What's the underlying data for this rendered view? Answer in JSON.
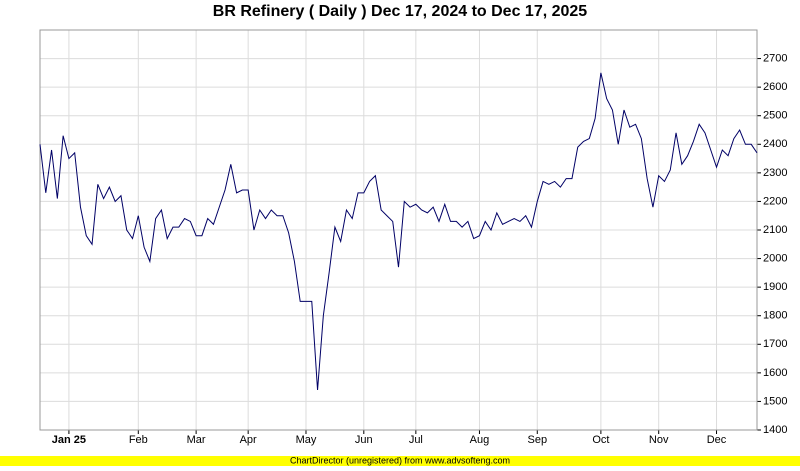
{
  "chart_data": {
    "type": "line",
    "title": "BR Refinery ( Daily ) Dec 17, 2024 to Dec 17, 2025",
    "categories": [
      null,
      null,
      null,
      null,
      null,
      "Jan 25",
      null,
      null,
      null,
      null,
      null,
      null,
      null,
      null,
      null,
      null,
      null,
      "Feb",
      null,
      null,
      null,
      null,
      null,
      null,
      null,
      null,
      null,
      "Mar",
      null,
      null,
      null,
      null,
      null,
      null,
      null,
      null,
      "Apr",
      null,
      null,
      null,
      null,
      null,
      null,
      null,
      null,
      null,
      "May",
      null,
      null,
      null,
      null,
      null,
      null,
      null,
      null,
      null,
      "Jun",
      null,
      null,
      null,
      null,
      null,
      null,
      null,
      null,
      "Jul",
      null,
      null,
      null,
      null,
      null,
      null,
      null,
      null,
      null,
      null,
      "Aug",
      null,
      null,
      null,
      null,
      null,
      null,
      null,
      null,
      null,
      "Sep",
      null,
      null,
      null,
      null,
      null,
      null,
      null,
      null,
      null,
      null,
      "Oct",
      null,
      null,
      null,
      null,
      null,
      null,
      null,
      null,
      null,
      "Nov",
      null,
      null,
      null,
      null,
      null,
      null,
      null,
      null,
      null,
      "Dec",
      null,
      null,
      null,
      null,
      null,
      null,
      null
    ],
    "values": [
      2400,
      2230,
      2380,
      2210,
      2430,
      2350,
      2370,
      2180,
      2080,
      2050,
      2260,
      2210,
      2250,
      2200,
      2220,
      2100,
      2070,
      2150,
      2040,
      1990,
      2140,
      2170,
      2070,
      2110,
      2110,
      2140,
      2130,
      2080,
      2080,
      2140,
      2120,
      2180,
      2240,
      2330,
      2230,
      2240,
      2240,
      2100,
      2170,
      2140,
      2170,
      2150,
      2150,
      2090,
      1990,
      1850,
      1850,
      1850,
      1540,
      1800,
      1950,
      2110,
      2060,
      2170,
      2140,
      2230,
      2230,
      2270,
      2290,
      2170,
      2150,
      2130,
      1970,
      2200,
      2180,
      2190,
      2170,
      2160,
      2180,
      2130,
      2190,
      2130,
      2130,
      2110,
      2130,
      2070,
      2080,
      2130,
      2100,
      2160,
      2120,
      2130,
      2140,
      2130,
      2150,
      2110,
      2200,
      2270,
      2260,
      2270,
      2250,
      2280,
      2280,
      2390,
      2410,
      2420,
      2490,
      2650,
      2560,
      2520,
      2400,
      2520,
      2460,
      2470,
      2420,
      2280,
      2180,
      2290,
      2270,
      2310,
      2440,
      2330,
      2360,
      2410,
      2470,
      2440,
      2380,
      2320,
      2380,
      2360,
      2420,
      2450,
      2400,
      2400,
      2370
    ],
    "color": "#000066",
    "ylim": [
      1400,
      2800
    ],
    "yticks": [
      1400,
      1500,
      1600,
      1700,
      1800,
      1900,
      2000,
      2100,
      2200,
      2300,
      2400,
      2500,
      2600,
      2700
    ],
    "grid": true
  },
  "footer": "ChartDirector (unregistered) from www.advsofteng.com"
}
